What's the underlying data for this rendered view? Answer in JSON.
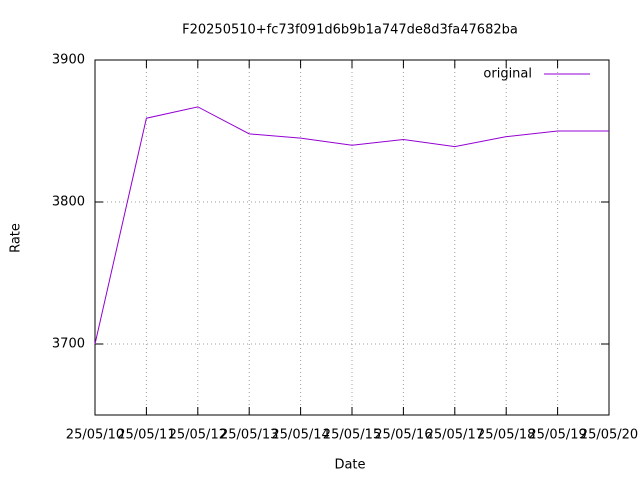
{
  "chart_data": {
    "type": "line",
    "title": "F20250510+fc73f091d6b9b1a747de8d3fa47682ba",
    "x_label": "Date",
    "y_label": "Rate",
    "categories": [
      "25/05/10",
      "25/05/11",
      "25/05/12",
      "25/05/13",
      "25/05/14",
      "25/05/15",
      "25/05/16",
      "25/05/17",
      "25/05/18",
      "25/05/19",
      "25/05/20"
    ],
    "series": [
      {
        "name": "original",
        "color": "#9400d3",
        "values": [
          3700,
          3859,
          3867,
          3848,
          3845,
          3840,
          3844,
          3839,
          3846,
          3850,
          3850
        ]
      }
    ],
    "ylim": [
      3650,
      3900
    ],
    "yticks": [
      3700,
      3800,
      3900
    ],
    "grid": true,
    "legend": "top-right"
  }
}
